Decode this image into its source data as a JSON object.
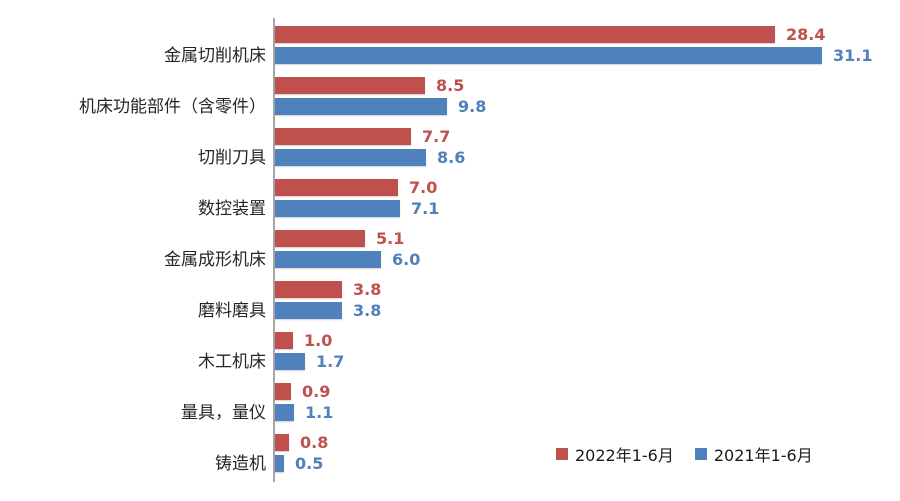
{
  "chart_data": {
    "type": "bar",
    "orientation": "horizontal",
    "title": "",
    "xlabel": "",
    "ylabel": "",
    "xlim": [
      0,
      34.4
    ],
    "grid": false,
    "legend_position": "bottom-right",
    "value_labels": true,
    "axis_color": "#a6a6a6",
    "background": "#ffffff",
    "categories": [
      "金属切削机床",
      "机床功能部件（含零件）",
      "切削刀具",
      "数控装置",
      "金属成形机床",
      "磨料磨具",
      "木工机床",
      "量具，量仪",
      "铸造机"
    ],
    "series": [
      {
        "name": "2022年1-6月",
        "color": "#C0504D",
        "values": [
          28.4,
          8.5,
          7.7,
          7.0,
          5.1,
          3.8,
          1.0,
          0.9,
          0.8
        ]
      },
      {
        "name": "2021年1-6月",
        "color": "#4F81BD",
        "values": [
          31.1,
          9.8,
          8.6,
          7.1,
          6.0,
          3.8,
          1.7,
          1.1,
          0.5
        ]
      }
    ]
  }
}
